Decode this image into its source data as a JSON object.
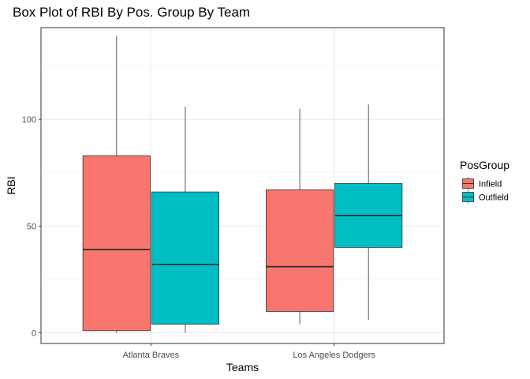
{
  "chart_data": {
    "type": "boxplot",
    "title": "Box Plot of RBI By Pos. Group By Team",
    "xlabel": "Teams",
    "ylabel": "RBI",
    "categories": [
      "Atlanta Braves",
      "Los Angeles Dodgers"
    ],
    "ylim": [
      -5,
      143
    ],
    "yticks": [
      0,
      50,
      100
    ],
    "grid": true,
    "legend": {
      "title": "PosGroup",
      "placement": "right",
      "entries": [
        {
          "label": "Infield",
          "color": "#F8766D"
        },
        {
          "label": "Outfield",
          "color": "#00BFC4"
        }
      ]
    },
    "series": [
      {
        "name": "Infield",
        "color": "#F8766D",
        "boxes": [
          {
            "category": "Atlanta Braves",
            "min": 0,
            "q1": 1,
            "median": 39,
            "q3": 83,
            "max": 139
          },
          {
            "category": "Los Angeles Dodgers",
            "min": 4,
            "q1": 10,
            "median": 31,
            "q3": 67,
            "max": 105
          }
        ]
      },
      {
        "name": "Outfield",
        "color": "#00BFC4",
        "boxes": [
          {
            "category": "Atlanta Braves",
            "min": 0,
            "q1": 4,
            "median": 32,
            "q3": 66,
            "max": 106
          },
          {
            "category": "Los Angeles Dodgers",
            "min": 6,
            "q1": 40,
            "median": 55,
            "q3": 70,
            "max": 107
          }
        ]
      }
    ]
  }
}
